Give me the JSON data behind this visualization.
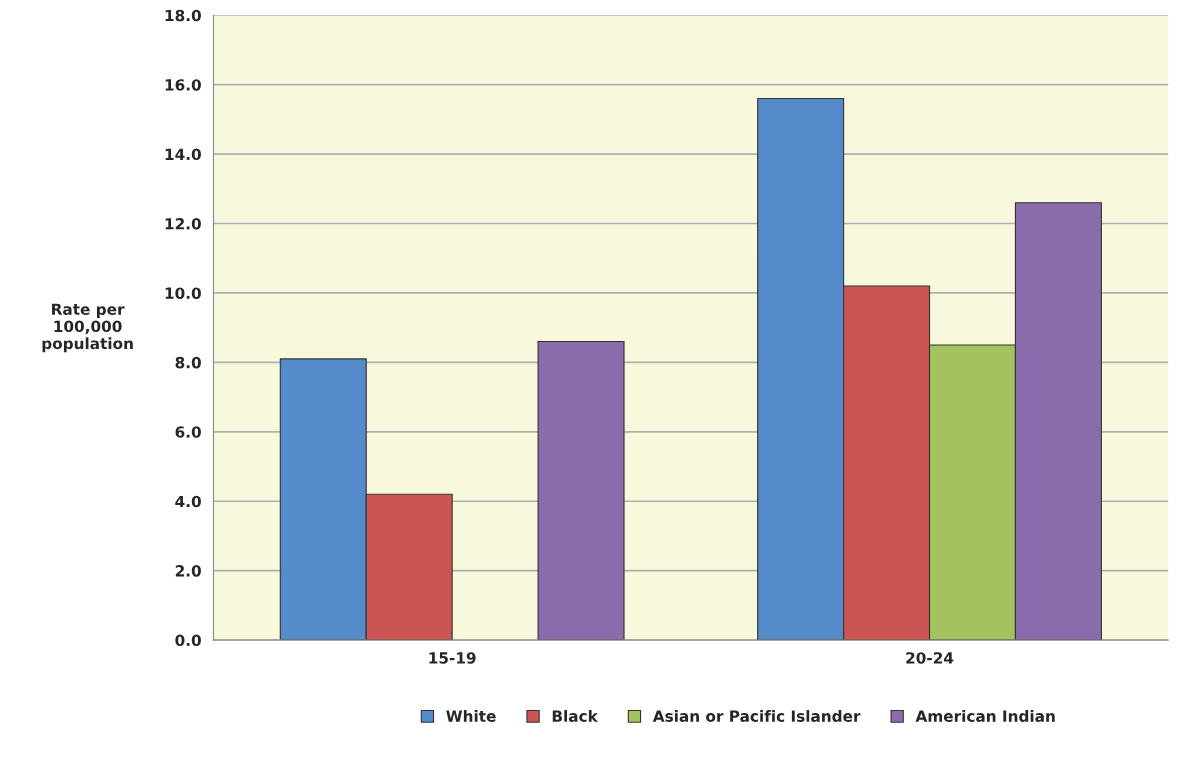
{
  "chart_data": {
    "type": "bar",
    "categories": [
      "15-19",
      "20-24"
    ],
    "ylabel": "Rate per\n100,000\npopulation",
    "series": [
      {
        "name": "White",
        "color": "#558acb",
        "values": [
          8.1,
          15.6
        ]
      },
      {
        "name": "Black",
        "color": "#cb5553",
        "values": [
          4.2,
          10.2
        ]
      },
      {
        "name": "Asian or Pacific Islander",
        "color": "#a2c35f",
        "values": [
          null,
          8.5
        ]
      },
      {
        "name": "American Indian",
        "color": "#8a6cac",
        "values": [
          8.6,
          12.6
        ]
      }
    ],
    "ylim": [
      0,
      18
    ],
    "yticks": [
      {
        "value": 0,
        "label": "0.0"
      },
      {
        "value": 2,
        "label": "2.0"
      },
      {
        "value": 4,
        "label": "4.0"
      },
      {
        "value": 6,
        "label": "6.0"
      },
      {
        "value": 8,
        "label": "8.0"
      },
      {
        "value": 10,
        "label": "10.0"
      },
      {
        "value": 12,
        "label": "12.0"
      },
      {
        "value": 14,
        "label": "14.0"
      },
      {
        "value": 16,
        "label": "16.0"
      },
      {
        "value": 18,
        "label": "18.0"
      }
    ],
    "grid": "y",
    "legend": "bottom"
  }
}
